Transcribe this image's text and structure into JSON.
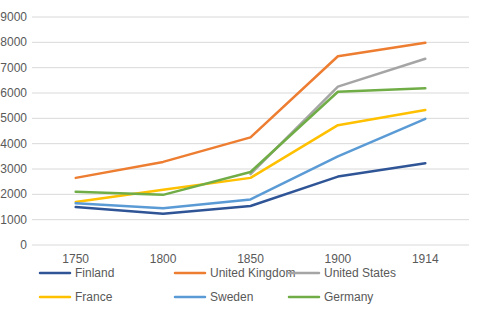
{
  "chart_data": {
    "type": "line",
    "categories": [
      "1750",
      "1800",
      "1850",
      "1900",
      "1914"
    ],
    "series": [
      {
        "name": "Finland",
        "color": "#2f5597",
        "values": [
          1500,
          1230,
          1540,
          2700,
          3230
        ]
      },
      {
        "name": "United Kingdom",
        "color": "#ed7d31",
        "values": [
          2650,
          3280,
          4250,
          7450,
          7980
        ]
      },
      {
        "name": "United States",
        "color": "#a5a5a5",
        "values": [
          null,
          null,
          2800,
          6250,
          7350
        ]
      },
      {
        "name": "France",
        "color": "#ffc000",
        "values": [
          1700,
          2180,
          2650,
          4730,
          5330
        ]
      },
      {
        "name": "Sweden",
        "color": "#5b9bd5",
        "values": [
          1650,
          1450,
          1800,
          3500,
          4980
        ]
      },
      {
        "name": "Germany",
        "color": "#70ad47",
        "values": [
          2100,
          1980,
          2880,
          6050,
          6190
        ]
      }
    ],
    "ylim": [
      0,
      9000
    ],
    "yticks": [
      0,
      1000,
      2000,
      3000,
      4000,
      5000,
      6000,
      7000,
      8000,
      9000
    ],
    "grid": true,
    "legend": "bottom"
  }
}
